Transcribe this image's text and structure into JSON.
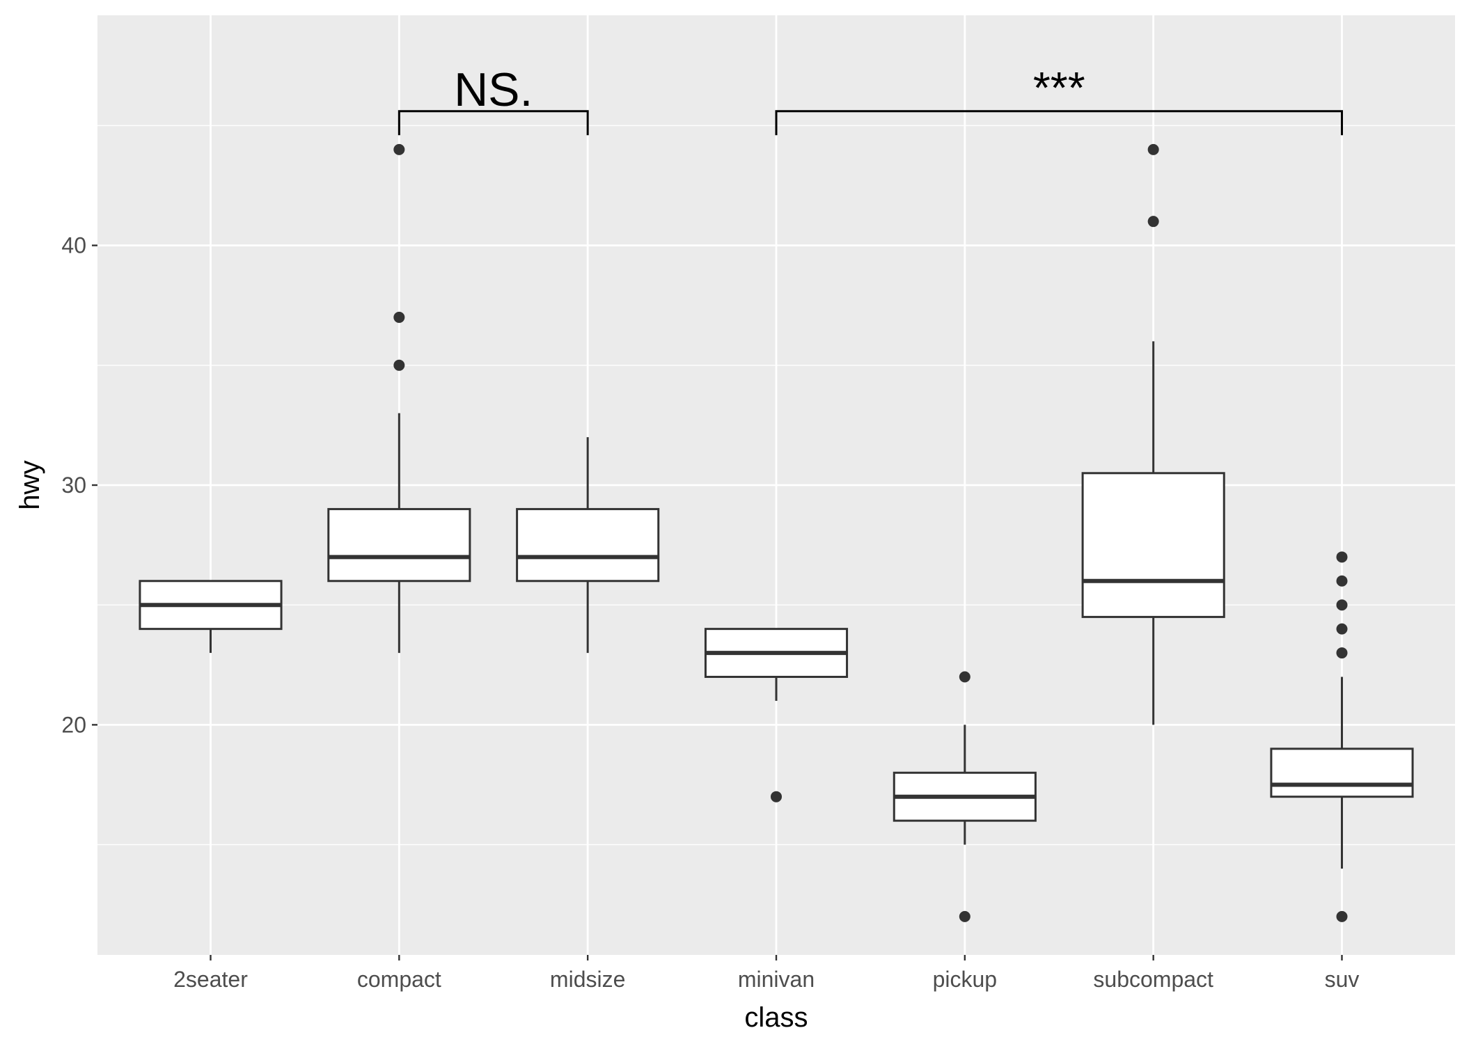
{
  "chart_data": {
    "type": "boxplot",
    "xlabel": "class",
    "ylabel": "hwy",
    "ylim": [
      10.4,
      49.6
    ],
    "yticks": [
      20,
      30,
      40
    ],
    "grid": true,
    "categories": [
      "2seater",
      "compact",
      "midsize",
      "minivan",
      "pickup",
      "subcompact",
      "suv"
    ],
    "boxes": [
      {
        "category": "2seater",
        "whisker_low": 23,
        "q1": 24,
        "median": 25,
        "q3": 26,
        "whisker_high": 26,
        "outliers": []
      },
      {
        "category": "compact",
        "whisker_low": 23,
        "q1": 26,
        "median": 27,
        "q3": 29,
        "whisker_high": 33,
        "outliers": [
          35,
          37,
          44
        ]
      },
      {
        "category": "midsize",
        "whisker_low": 23,
        "q1": 26,
        "median": 27,
        "q3": 29,
        "whisker_high": 32,
        "outliers": []
      },
      {
        "category": "minivan",
        "whisker_low": 21,
        "q1": 22,
        "median": 23,
        "q3": 24,
        "whisker_high": 24,
        "outliers": [
          17
        ]
      },
      {
        "category": "pickup",
        "whisker_low": 15,
        "q1": 16,
        "median": 17,
        "q3": 18,
        "whisker_high": 20,
        "outliers": [
          12,
          22
        ]
      },
      {
        "category": "subcompact",
        "whisker_low": 20,
        "q1": 24.5,
        "median": 26,
        "q3": 30.5,
        "whisker_high": 36,
        "outliers": [
          41,
          44
        ]
      },
      {
        "category": "suv",
        "whisker_low": 14,
        "q1": 17,
        "median": 17.5,
        "q3": 19,
        "whisker_high": 22,
        "outliers": [
          12,
          23,
          24,
          25,
          26,
          27
        ]
      }
    ],
    "annotations": [
      {
        "from": "compact",
        "to": "midsize",
        "label": "NS.",
        "bar_y": 45.6,
        "tip_y": 44.6
      },
      {
        "from": "minivan",
        "to": "suv",
        "label": "***",
        "bar_y": 45.6,
        "tip_y": 44.6
      }
    ],
    "colors": {
      "panel": "#ebebeb",
      "grid": "#ffffff",
      "box_fill": "#ffffff",
      "box_stroke": "#333333",
      "point": "#333333",
      "annotation": "#000000"
    }
  }
}
